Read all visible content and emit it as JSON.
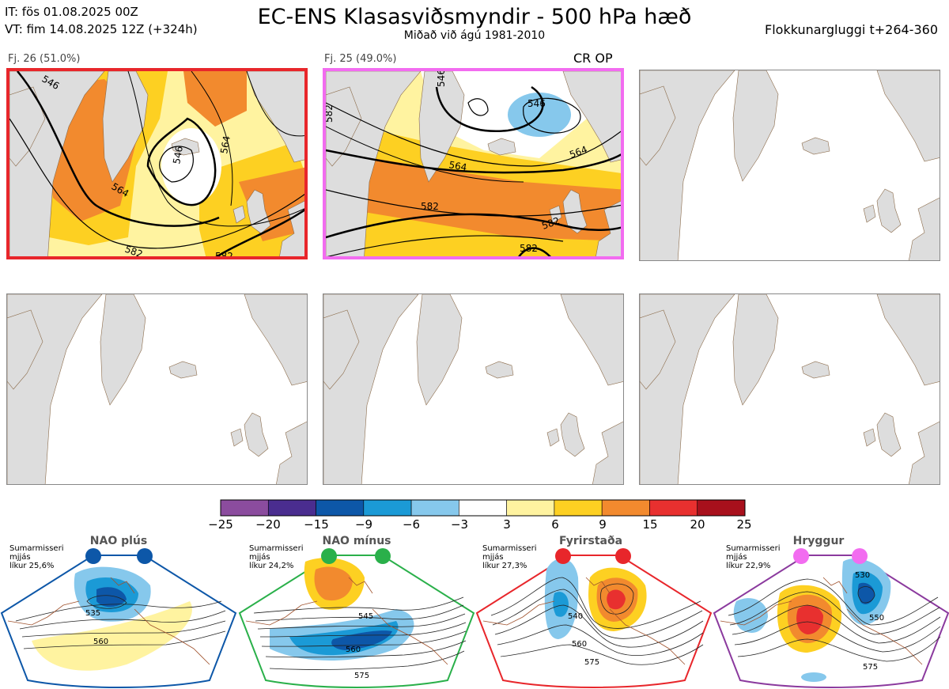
{
  "header": {
    "init_time": "IT: fös 01.08.2025 00Z",
    "valid_time": "VT: fim 14.08.2025 12Z  (+324h)",
    "title": "EC-ENS Klasasviðsmyndir - 500 hPa hæð",
    "subtitle": "Miðað við ágú 1981-2010",
    "window": "Flokkunargluggi t+264-360"
  },
  "panels": [
    {
      "label": "Fj. 26 (51.0%)",
      "selected": true,
      "tag": ""
    },
    {
      "label": "Fj. 25 (49.0%)",
      "selected": true,
      "tag": "CR OP"
    },
    {
      "label": "",
      "selected": false,
      "tag": ""
    },
    {
      "label": "",
      "selected": false,
      "tag": ""
    },
    {
      "label": "",
      "selected": false,
      "tag": ""
    },
    {
      "label": "",
      "selected": false,
      "tag": ""
    }
  ],
  "contour_labels": {
    "panel1": [
      "564",
      "546",
      "564",
      "582",
      "582",
      "546"
    ],
    "panel2": [
      "546",
      "546",
      "564",
      "564",
      "582",
      "582",
      "582",
      "582"
    ]
  },
  "colorbar": {
    "ticks": [
      "−25",
      "−20",
      "−15",
      "−9",
      "−6",
      "−3",
      "3",
      "6",
      "9",
      "15",
      "20",
      "25"
    ],
    "colors": [
      "#8b4c9e",
      "#4a2d8f",
      "#0d57a8",
      "#1b9ad6",
      "#86c8ec",
      "#ffffff",
      "#fff3a0",
      "#fdd022",
      "#f28a2e",
      "#e8302f",
      "#a8101c"
    ]
  },
  "regimes": [
    {
      "name": "NAO plús",
      "season": "Sumarmisseri",
      "smoothing": "mjjás",
      "probability": "líkur 25,6%",
      "color": "#0d57a8",
      "contours": [
        "535",
        "560"
      ]
    },
    {
      "name": "NAO mínus",
      "season": "Sumarmisseri",
      "smoothing": "mjjás",
      "probability": "líkur 24,2%",
      "color": "#2ab04a",
      "contours": [
        "545",
        "560",
        "575"
      ]
    },
    {
      "name": "Fyrirstaða",
      "season": "Sumarmisseri",
      "smoothing": "mjjás",
      "probability": "líkur 27,3%",
      "color": "#e8262b",
      "contours": [
        "540",
        "560",
        "575"
      ]
    },
    {
      "name": "Hryggur",
      "season": "Sumarmisseri",
      "smoothing": "mjjás",
      "probability": "líkur 22,9%",
      "color": "#f26cf0",
      "contours": [
        "530",
        "550",
        "575"
      ]
    }
  ]
}
